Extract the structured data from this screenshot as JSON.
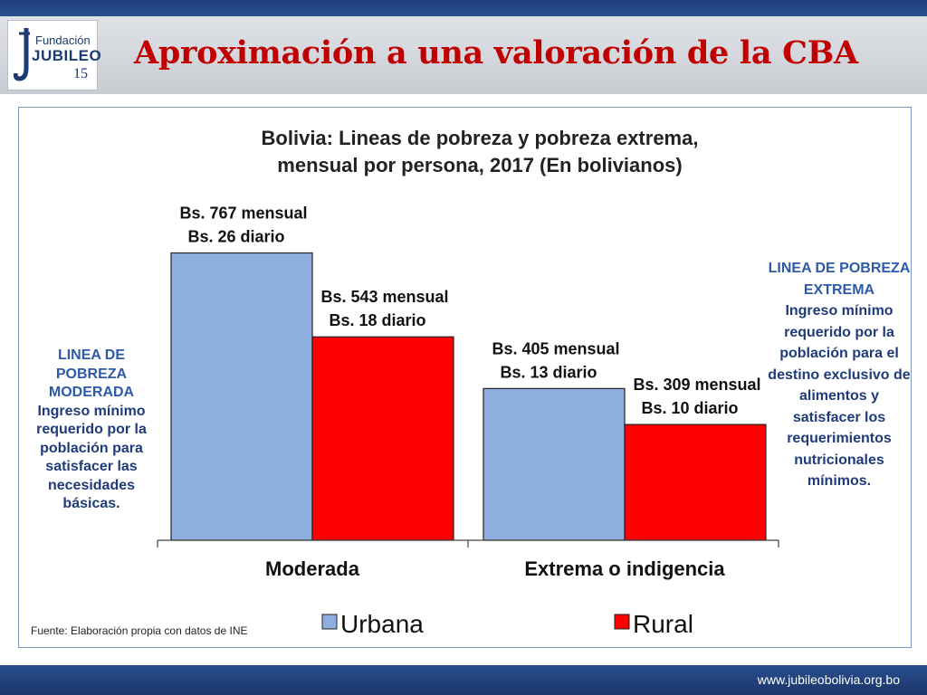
{
  "header": {
    "logo_text_top": "Fundación",
    "logo_text_main": "JUBILEO",
    "logo_anniversary": "15",
    "title": "Aproximación a una valoración de la CBA"
  },
  "panel": {
    "left_note": {
      "label": "LINEA DE POBREZA MODERADA",
      "text": "Ingreso mínimo requerido por la población para satisfacer las necesidades básicas."
    },
    "right_note": {
      "label": "LINEA DE POBREZA EXTREMA",
      "text": "Ingreso mínimo requerido por la población para el destino exclusivo de alimentos y satisfacer los requerimientos nutricionales mínimos."
    },
    "source": "Fuente: Elaboración propia  con datos de INE"
  },
  "footer": {
    "url": "www.jubileobolivia.org.bo"
  },
  "colors": {
    "urbana": "#8eb0e0",
    "rural": "#ff0000",
    "title_red": "#c00000",
    "navy": "#1f3f7a"
  },
  "chart_data": {
    "type": "bar",
    "title": "Bolivia:  Lineas de pobreza y pobreza extrema,",
    "subtitle": "mensual por persona, 2017  (En bolivianos)",
    "categories": [
      "Moderada",
      "Extrema o indigencia"
    ],
    "series": [
      {
        "name": "Urbana",
        "values": [
          767,
          405
        ],
        "labels": [
          [
            "Bs. 767 mensual",
            "Bs. 26 diario"
          ],
          [
            "Bs. 405 mensual",
            "Bs. 13 diario"
          ]
        ]
      },
      {
        "name": "Rural",
        "values": [
          543,
          309
        ],
        "labels": [
          [
            "Bs. 543 mensual",
            "Bs. 18 diario"
          ],
          [
            "Bs. 309 mensual",
            "Bs. 10 diario"
          ]
        ]
      }
    ],
    "xlabel": "",
    "ylabel": "",
    "ylim": [
      0,
      1133
    ],
    "legend": "bottom"
  }
}
